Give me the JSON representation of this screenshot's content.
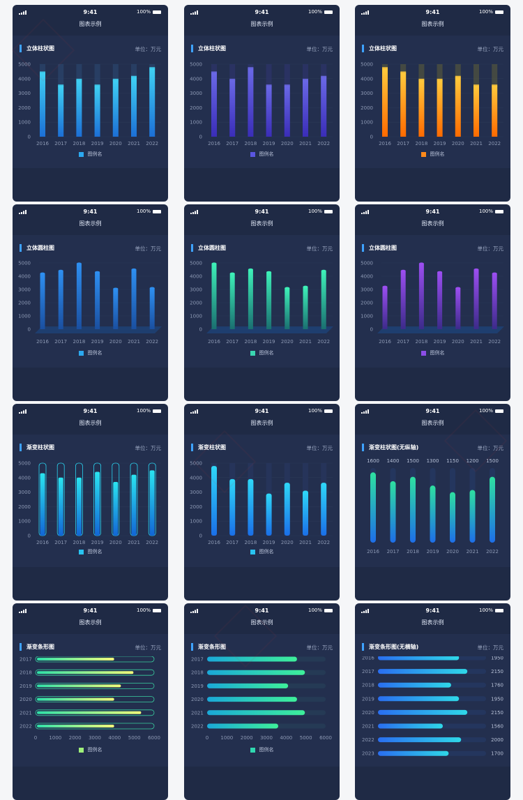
{
  "status": {
    "time": "9:41",
    "battery": "100%"
  },
  "nav_title": "图表示例",
  "unit_label": "单位：万元",
  "legend_label": "图例名",
  "charts": [
    {
      "title": "立体柱状图",
      "style": "cube",
      "colors": [
        "#1c6fd6",
        "#3fd0f3"
      ],
      "bg": "#2c4a72",
      "legend": "#2ca8ef"
    },
    {
      "title": "立体柱状图",
      "style": "cube",
      "colors": [
        "#3a2db8",
        "#6a68e6"
      ],
      "bg": "#2e3670",
      "legend": "#5a56e0"
    },
    {
      "title": "立体柱状图",
      "style": "cube",
      "colors": [
        "#ff6a00",
        "#ffc93c"
      ],
      "bg": "#5a5b3a",
      "legend": "#ff8a1a"
    },
    {
      "title": "立体圆柱图",
      "style": "cyl",
      "colors": [
        "#1a4fa0",
        "#2e8ff0"
      ],
      "legend": "#2ca8ef"
    },
    {
      "title": "立体圆柱图",
      "style": "cyl",
      "colors": [
        "#1a6f70",
        "#3ef0b8"
      ],
      "legend": "#3ad6b0"
    },
    {
      "title": "立体圆柱图",
      "style": "cyl",
      "colors": [
        "#3c2b8a",
        "#9b4ef0"
      ],
      "legend": "#8c4ee6"
    },
    {
      "title": "渐变柱状图",
      "style": "capsule",
      "colors": [
        "#1266d6",
        "#2ae4f0"
      ],
      "legend": "#29c3f0"
    },
    {
      "title": "渐变柱状图",
      "style": "gradbg",
      "colors": [
        "#1a6fe8",
        "#2fd8f8"
      ],
      "legend": "#29c3f0"
    },
    {
      "title": "渐变柱状图(无纵轴)",
      "style": "round",
      "colors": [
        "#1e6ee8",
        "#2ee0a0"
      ],
      "legend": ""
    },
    {
      "title": "渐变条形图",
      "style": "hbar-outline",
      "colors": [
        "#2fe0a8",
        "#f2ff7a"
      ],
      "legend": "#9ff07a"
    },
    {
      "title": "渐变条形图",
      "style": "hbar",
      "colors": [
        "#1aa8d8",
        "#3ef09a"
      ],
      "legend": "#2fd8b0"
    },
    {
      "title": "渐变条形图(无横轴)",
      "style": "hbar-noaxis",
      "colors": [
        "#2a6ef0",
        "#2fd8e8"
      ],
      "legend": ""
    }
  ],
  "chart_data": [
    {
      "type": "bar",
      "title": "立体柱状图",
      "categories": [
        "2016",
        "2017",
        "2018",
        "2019",
        "2020",
        "2021",
        "2022"
      ],
      "series": [
        {
          "name": "图例名",
          "values": [
            4400,
            3500,
            3900,
            3500,
            3900,
            4100,
            4700
          ]
        }
      ],
      "ylim": [
        0,
        5000
      ],
      "yticks": [
        "0",
        "1000",
        "2000",
        "3000",
        "4000",
        "5000"
      ]
    },
    {
      "type": "bar",
      "title": "立体柱状图",
      "categories": [
        "2016",
        "2017",
        "2018",
        "2019",
        "2020",
        "2021",
        "2022"
      ],
      "series": [
        {
          "name": "图例名",
          "values": [
            4400,
            3900,
            4700,
            3500,
            3500,
            3900,
            4100
          ]
        }
      ],
      "ylim": [
        0,
        5000
      ],
      "yticks": [
        "0",
        "1000",
        "2000",
        "3000",
        "4000",
        "5000"
      ]
    },
    {
      "type": "bar",
      "title": "立体柱状图",
      "categories": [
        "2016",
        "2017",
        "2018",
        "2019",
        "2020",
        "2021",
        "2022"
      ],
      "series": [
        {
          "name": "图例名",
          "values": [
            4700,
            4400,
            3900,
            3900,
            4100,
            3500,
            3500
          ]
        }
      ],
      "ylim": [
        0,
        5000
      ],
      "yticks": [
        "0",
        "1000",
        "2000",
        "3000",
        "4000",
        "5000"
      ]
    },
    {
      "type": "bar",
      "title": "立体圆柱图",
      "categories": [
        "2016",
        "2017",
        "2018",
        "2019",
        "2020",
        "2021",
        "2022"
      ],
      "series": [
        {
          "name": "图例名",
          "values": [
            4200,
            4400,
            4950,
            4300,
            3050,
            4500,
            3100
          ]
        }
      ],
      "ylim": [
        0,
        5000
      ],
      "yticks": [
        "0",
        "1000",
        "2000",
        "3000",
        "4000",
        "5000"
      ]
    },
    {
      "type": "bar",
      "title": "立体圆柱图",
      "categories": [
        "2016",
        "2017",
        "2018",
        "2019",
        "2020",
        "2021",
        "2022"
      ],
      "series": [
        {
          "name": "图例名",
          "values": [
            4950,
            4200,
            4500,
            4300,
            3100,
            3200,
            4400
          ]
        }
      ],
      "ylim": [
        0,
        5000
      ],
      "yticks": [
        "0",
        "1000",
        "2000",
        "3000",
        "4000",
        "5000"
      ]
    },
    {
      "type": "bar",
      "title": "立体圆柱图",
      "categories": [
        "2016",
        "2017",
        "2018",
        "2019",
        "2020",
        "2021",
        "2022"
      ],
      "series": [
        {
          "name": "图例名",
          "values": [
            3200,
            4400,
            4950,
            4300,
            3100,
            4500,
            4200
          ]
        }
      ],
      "ylim": [
        0,
        5000
      ],
      "yticks": [
        "0",
        "1000",
        "2000",
        "3000",
        "4000",
        "5000"
      ]
    },
    {
      "type": "bar",
      "title": "渐变柱状图",
      "categories": [
        "2016",
        "2017",
        "2018",
        "2019",
        "2020",
        "2021",
        "2022"
      ],
      "series": [
        {
          "name": "图例名",
          "values": [
            4300,
            4000,
            4000,
            4400,
            3700,
            4200,
            4500
          ]
        }
      ],
      "ylim": [
        0,
        5000
      ],
      "yticks": [
        "0",
        "1000",
        "2000",
        "3000",
        "4000",
        "5000"
      ]
    },
    {
      "type": "bar",
      "title": "渐变柱状图",
      "categories": [
        "2016",
        "2017",
        "2018",
        "2019",
        "2020",
        "2021",
        "2022"
      ],
      "series": [
        {
          "name": "图例名",
          "values": [
            4800,
            3900,
            3900,
            2900,
            3650,
            3100,
            3650
          ]
        }
      ],
      "ylim": [
        0,
        5000
      ],
      "yticks": [
        "0",
        "1000",
        "2000",
        "3000",
        "4000",
        "5000"
      ]
    },
    {
      "type": "bar",
      "title": "渐变柱状图(无纵轴)",
      "categories": [
        "2016",
        "2017",
        "2018",
        "2019",
        "2020",
        "2021",
        "2022"
      ],
      "series": [
        {
          "values": [
            1600,
            1400,
            1500,
            1300,
            1150,
            1200,
            1500
          ]
        }
      ],
      "labels": [
        "1600",
        "1400",
        "1500",
        "1300",
        "1150",
        "1200",
        "1500"
      ],
      "ylim": [
        0,
        1800
      ]
    },
    {
      "type": "bar",
      "title": "渐变条形图",
      "orientation": "horizontal",
      "categories": [
        "2017",
        "2018",
        "2019",
        "2020",
        "2021",
        "2022"
      ],
      "series": [
        {
          "name": "图例名",
          "values": [
            4000,
            5000,
            4350,
            4000,
            5400,
            4000
          ]
        }
      ],
      "xlim": [
        0,
        6000
      ],
      "xticks": [
        "0",
        "1000",
        "2000",
        "3000",
        "4000",
        "5000",
        "6000"
      ]
    },
    {
      "type": "bar",
      "title": "渐变条形图",
      "orientation": "horizontal",
      "categories": [
        "2017",
        "2018",
        "2019",
        "2020",
        "2021",
        "2022"
      ],
      "series": [
        {
          "name": "图例名",
          "values": [
            4550,
            4950,
            4100,
            4550,
            4950,
            3600
          ]
        }
      ],
      "xlim": [
        0,
        6000
      ],
      "xticks": [
        "0",
        "1000",
        "2000",
        "3000",
        "4000",
        "5000",
        "6000"
      ]
    },
    {
      "type": "bar",
      "title": "渐变条形图(无横轴)",
      "orientation": "horizontal",
      "categories": [
        "2016",
        "2017",
        "2018",
        "2019",
        "2020",
        "2021",
        "2022",
        "2023"
      ],
      "series": [
        {
          "values": [
            1950,
            2150,
            1760,
            1950,
            2150,
            1560,
            2000,
            1700
          ]
        }
      ],
      "labels": [
        "1950",
        "2150",
        "1760",
        "1950",
        "2150",
        "1560",
        "2000",
        "1700"
      ],
      "xlim": [
        0,
        2600
      ]
    }
  ]
}
